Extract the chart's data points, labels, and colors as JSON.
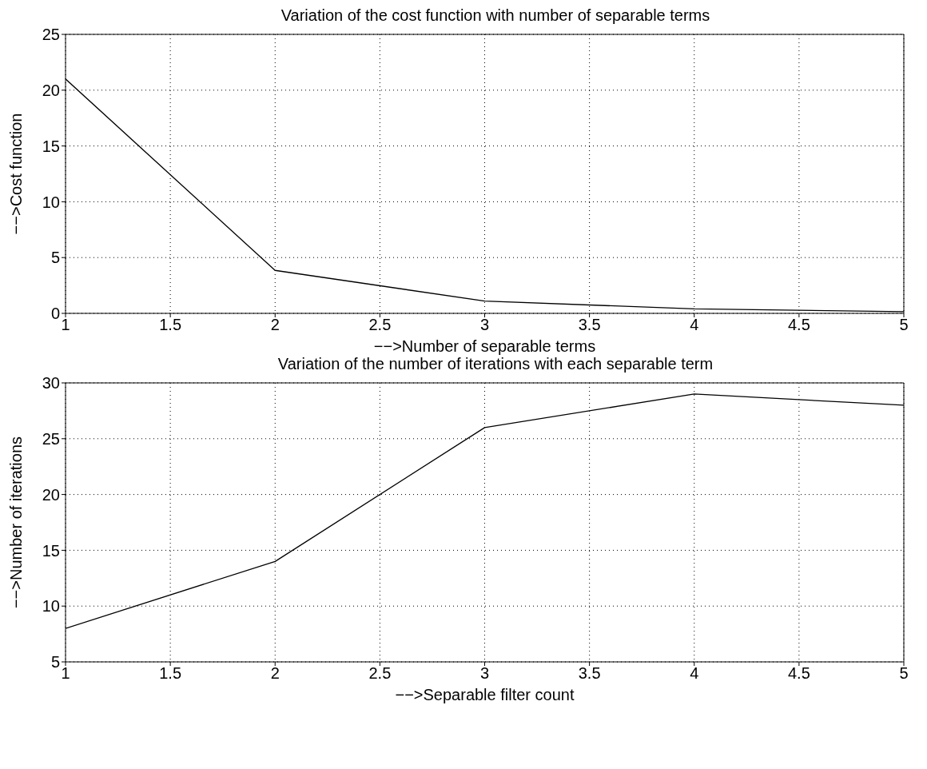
{
  "chart_data": [
    {
      "type": "line",
      "title": "Variation of the cost function with number of separable terms",
      "xlabel": "−−>Number of separable terms",
      "ylabel": "−−>Cost function",
      "x": [
        1,
        2,
        3,
        4,
        5
      ],
      "series": [
        {
          "color": "#000000",
          "values": [
            21,
            3.85,
            1.1,
            0.4,
            0.15
          ]
        }
      ],
      "xlim": [
        1,
        5
      ],
      "xticks": [
        1,
        1.5,
        2,
        2.5,
        3,
        3.5,
        4,
        4.5,
        5
      ],
      "ylim": [
        0,
        25
      ],
      "yticks": [
        0,
        5,
        10,
        15,
        20,
        25
      ],
      "grid": true,
      "legend": false,
      "marker": "none",
      "line_style": "solid"
    },
    {
      "type": "line",
      "title": "Variation of the number of iterations with each separable term",
      "xlabel": "−−>Separable filter count",
      "ylabel": "−−>Number of iterations",
      "x": [
        1,
        2,
        3,
        4,
        5
      ],
      "series": [
        {
          "color": "#000000",
          "values": [
            8,
            14,
            26,
            29,
            28
          ]
        }
      ],
      "xlim": [
        1,
        5
      ],
      "xticks": [
        1,
        1.5,
        2,
        2.5,
        3,
        3.5,
        4,
        4.5,
        5
      ],
      "ylim": [
        5,
        30
      ],
      "yticks": [
        5,
        10,
        15,
        20,
        25,
        30
      ],
      "grid": true,
      "legend": false,
      "marker": "none",
      "line_style": "solid"
    }
  ]
}
